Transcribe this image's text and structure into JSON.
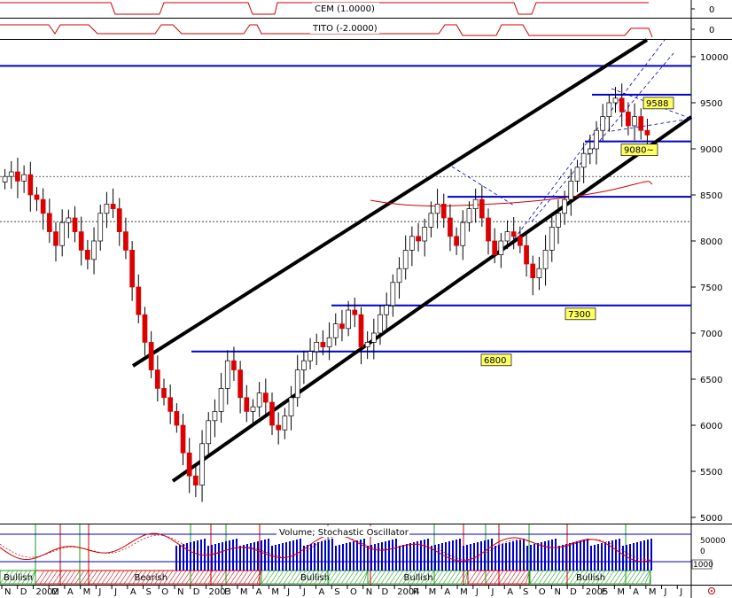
{
  "chart_data": [
    {
      "panel": "CEM indicator",
      "type": "line",
      "label": "CEM (1.0000)",
      "axis_ticks": [
        "0"
      ],
      "color": "#cc0000"
    },
    {
      "panel": "TITO indicator",
      "type": "line",
      "label": "TITO (-2.0000)",
      "axis_ticks": [
        "0"
      ],
      "color": "#cc0000"
    },
    {
      "panel": "Price",
      "type": "candlestick",
      "y_ticks": [
        10000,
        9500,
        9000,
        8500,
        8000,
        7500,
        7000,
        6500,
        6000,
        5500,
        5000
      ],
      "ylim": [
        5000,
        10100
      ],
      "grid": false,
      "horizontal_levels": [
        {
          "value": 9900,
          "label": ""
        },
        {
          "value": 9588,
          "label": "9588"
        },
        {
          "value": 9080,
          "label": "9080~"
        },
        {
          "value": 8480,
          "label": ""
        },
        {
          "value": 7300,
          "label": "7300"
        },
        {
          "value": 6800,
          "label": "6800"
        }
      ],
      "dotted_levels": [
        8700,
        8210
      ],
      "trend_channel": {
        "upper": [
          [
            0.0,
            6280
          ],
          [
            1.0,
            10190
          ]
        ],
        "lower": [
          [
            0.0,
            5230
          ],
          [
            1.0,
            9100
          ]
        ]
      },
      "moving_average": "red",
      "up_color": "#ffffff",
      "down_color": "#dd0000",
      "closes": [
        8700,
        8750,
        8650,
        8720,
        8500,
        8450,
        8300,
        8100,
        7950,
        8200,
        8250,
        8100,
        7900,
        7800,
        8000,
        8300,
        8400,
        8350,
        8100,
        7900,
        7500,
        7200,
        6900,
        6600,
        6400,
        6300,
        6150,
        6000,
        5700,
        5450,
        5350,
        5800,
        6050,
        6150,
        6400,
        6700,
        6600,
        6300,
        6150,
        6200,
        6350,
        6250,
        6000,
        5950,
        6100,
        6300,
        6600,
        6700,
        6800,
        6900,
        6850,
        6950,
        7100,
        7050,
        7250,
        7200,
        6850,
        6900,
        7000,
        7200,
        7300,
        7550,
        7700,
        7900,
        8050,
        8000,
        8150,
        8300,
        8400,
        8250,
        8050,
        7950,
        8200,
        8350,
        8450,
        8250,
        8000,
        7850,
        8000,
        8100,
        8050,
        7950,
        7750,
        7600,
        7700,
        7900,
        8150,
        8300,
        8450,
        8650,
        8800,
        8950,
        9000,
        9200,
        9350,
        9500,
        9550,
        9400,
        9250,
        9350,
        9200,
        9150
      ],
      "x_ticks": [
        "N",
        "D",
        "2002",
        "M",
        "A",
        "M",
        "J",
        "J",
        "A",
        "S",
        "O",
        "N",
        "D",
        "2003",
        "F",
        "M",
        "A",
        "M",
        "J",
        "J",
        "A",
        "S",
        "O",
        "N",
        "D",
        "2004",
        "F",
        "M",
        "A",
        "M",
        "J",
        "J",
        "A",
        "S",
        "O",
        "N",
        "D",
        "2005",
        "F",
        "M",
        "A",
        "M",
        "J",
        "J"
      ]
    },
    {
      "panel": "Volume / Stochastic Oscillator",
      "type": "bar",
      "label": "Volume; Stochastic Oscillator",
      "axis_ticks": [
        "50000",
        "0",
        "1000"
      ],
      "regimes": [
        "Bullish",
        "Bearish",
        "Bullish",
        "Bullish",
        "Bullish"
      ],
      "colors": {
        "volume": "#0000cc",
        "stochastic": "#cc0000",
        "regime_bull": "#1a9a1a",
        "regime_bear": "#cc0000"
      }
    }
  ]
}
